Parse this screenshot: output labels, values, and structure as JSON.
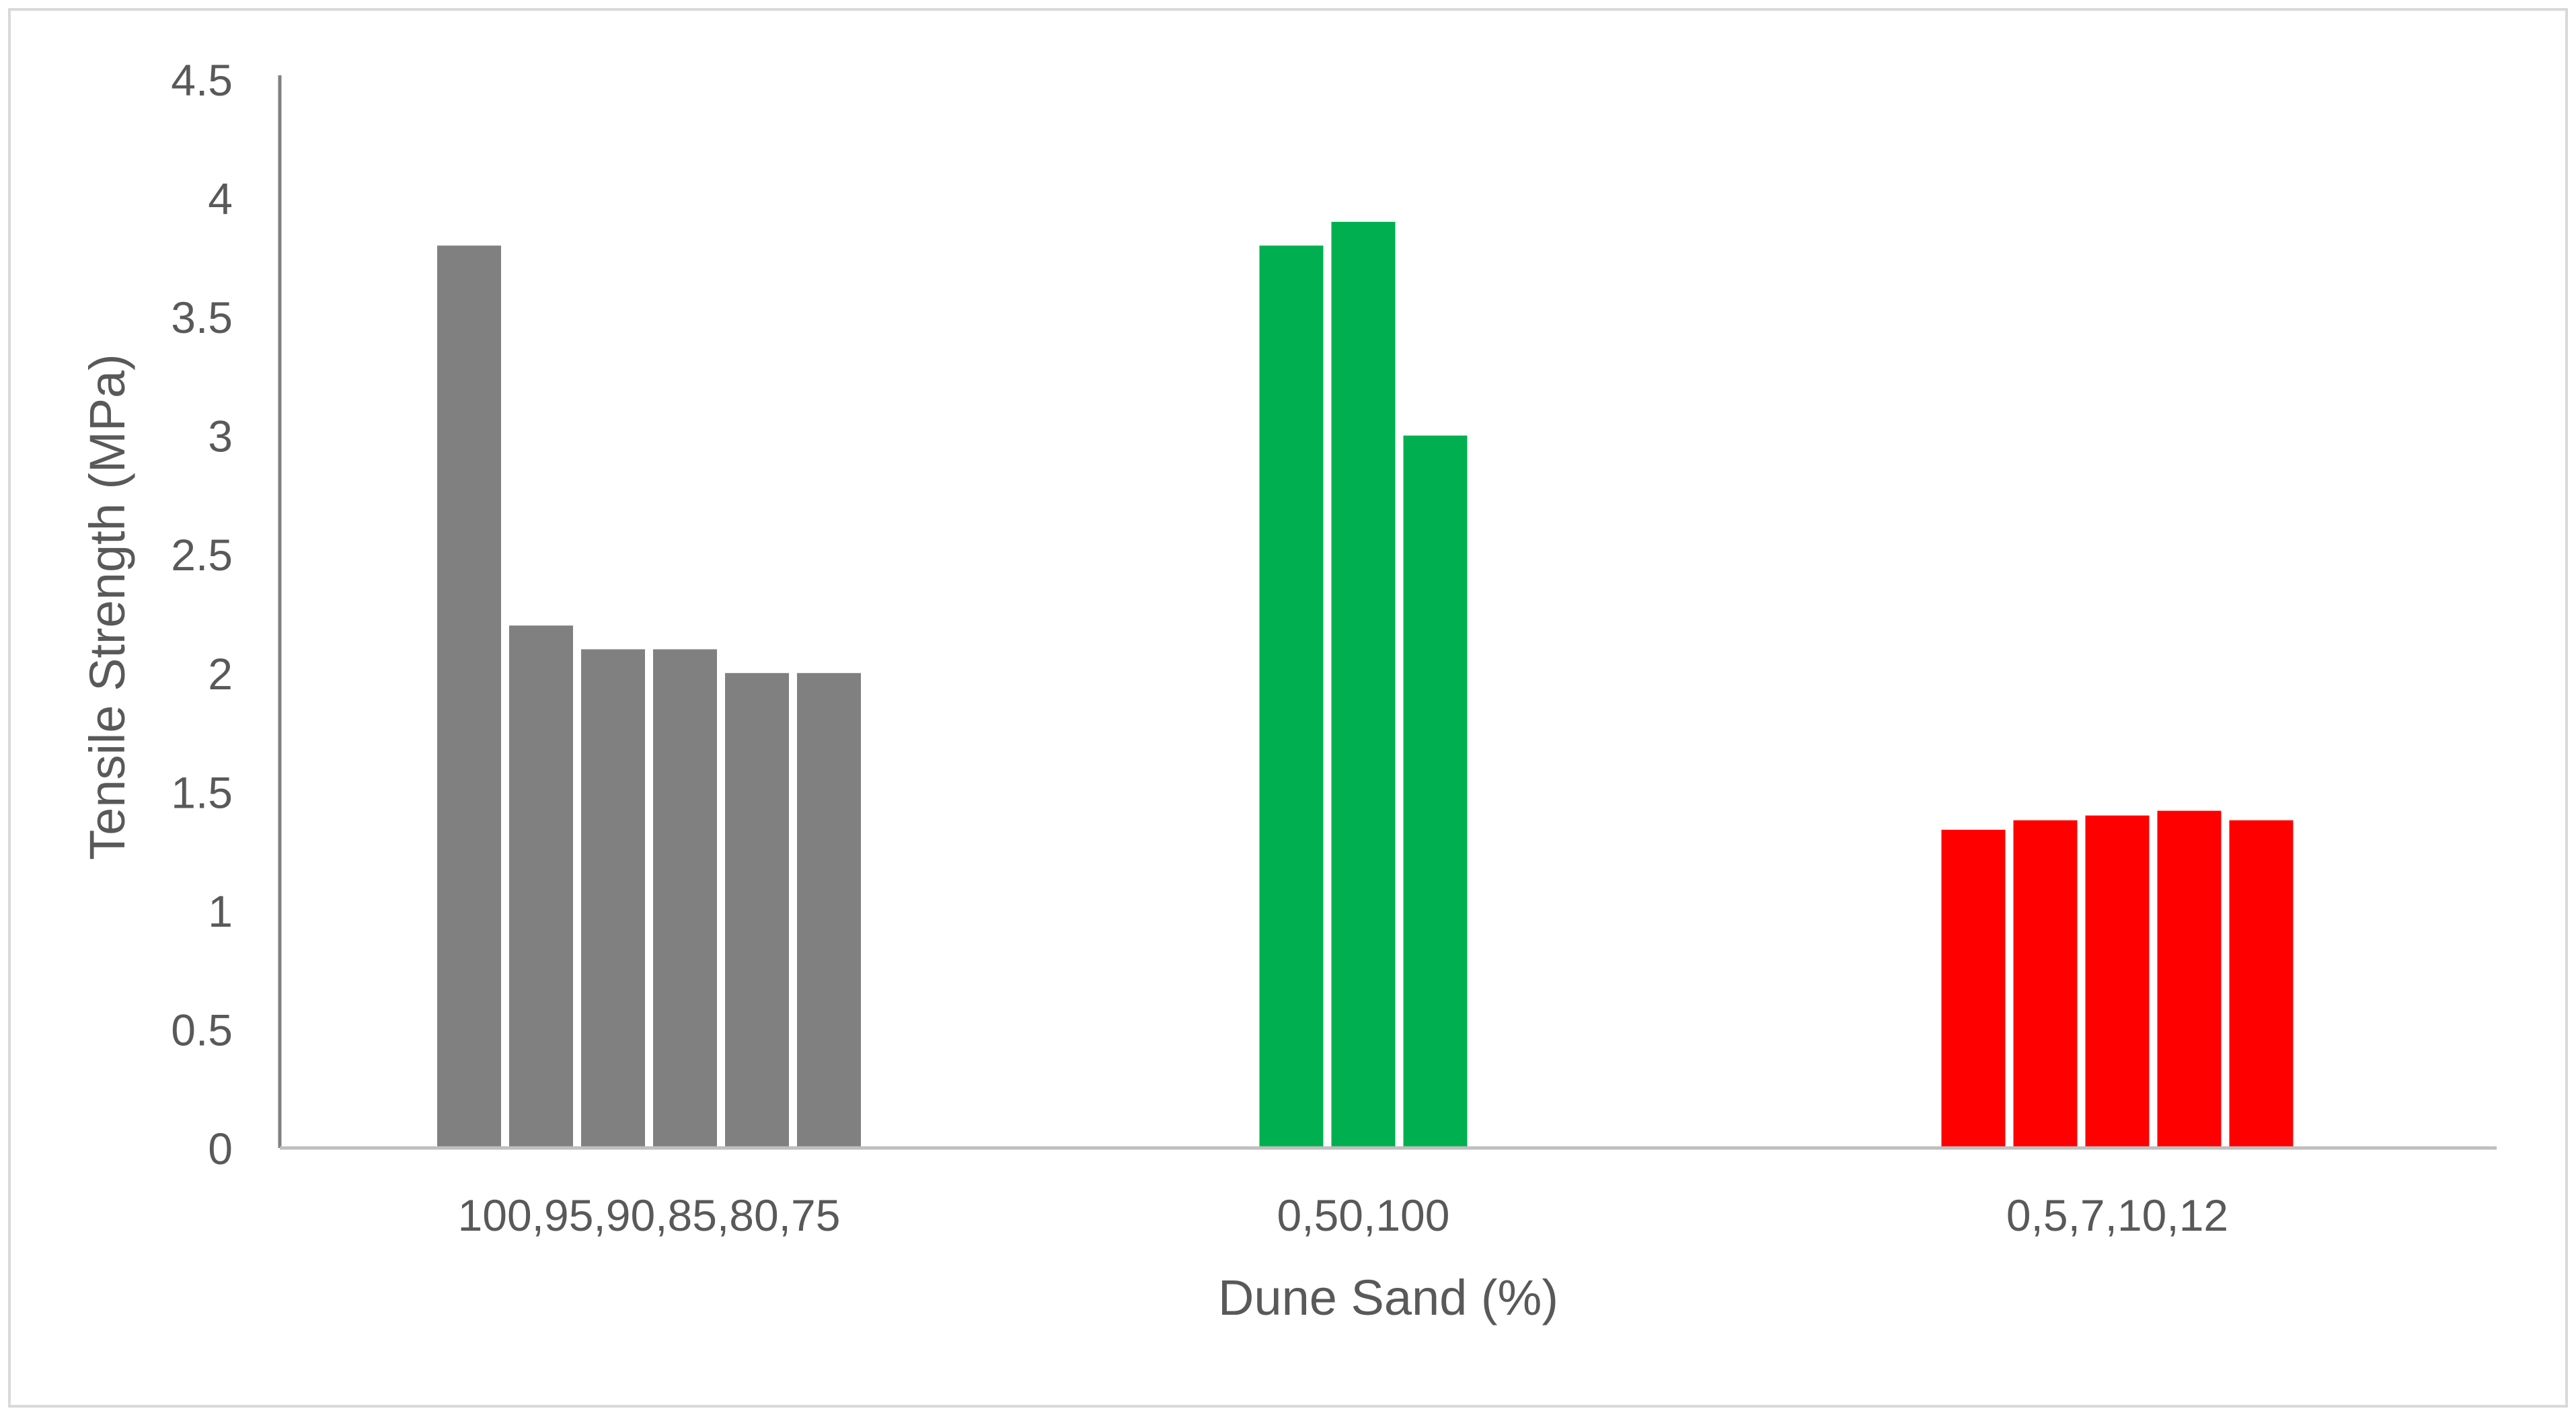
{
  "chart_data": {
    "type": "bar",
    "title": "",
    "xlabel": "Dune Sand (%)",
    "ylabel": "Tensile Strength (MPa)",
    "ylim": [
      0,
      4.5
    ],
    "yticks": [
      "0",
      "0.5",
      "1",
      "1.5",
      "2",
      "2.5",
      "3",
      "3.5",
      "4",
      "4.5"
    ],
    "grid": false,
    "legend": "none",
    "groups": [
      {
        "label": "100,95,90,85,80,75",
        "color": "#808080",
        "values": [
          3.8,
          2.2,
          2.1,
          2.1,
          2.0,
          2.0
        ]
      },
      {
        "label": "0,50,100",
        "color": "#00B050",
        "values": [
          3.8,
          3.9,
          3.0
        ]
      },
      {
        "label": "0,5,7,10,12",
        "color": "#FF0000",
        "values": [
          1.34,
          1.38,
          1.4,
          1.42,
          1.38
        ]
      }
    ]
  }
}
